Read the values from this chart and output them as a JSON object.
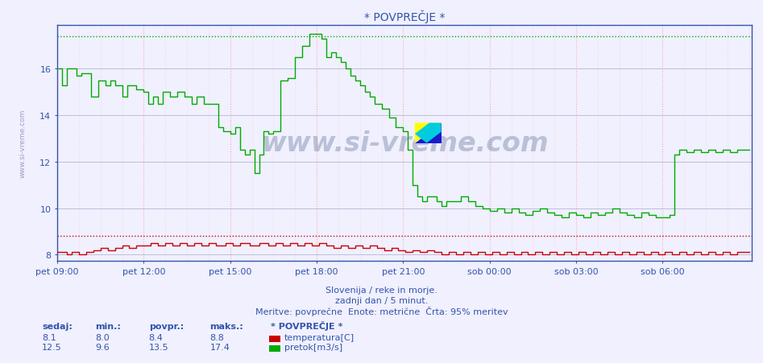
{
  "title": "* POVPREČJE *",
  "subtitle1": "Slovenija / reke in morje.",
  "subtitle2": "zadnji dan / 5 minut.",
  "subtitle3": "Meritve: povprečne  Enote: metrične  Črta: 95% meritev",
  "xlabel_ticks": [
    "pet 09:00",
    "pet 12:00",
    "pet 15:00",
    "pet 18:00",
    "pet 21:00",
    "sob 00:00",
    "sob 03:00",
    "sob 06:00"
  ],
  "ylabel_ticks": [
    8,
    10,
    12,
    14,
    16
  ],
  "ylim": [
    7.72,
    17.9
  ],
  "xlim": [
    0,
    289
  ],
  "tick_positions": [
    0,
    36,
    72,
    108,
    144,
    180,
    216,
    252
  ],
  "temp_color": "#cc0000",
  "flow_color": "#00aa00",
  "temp_95pct": 8.8,
  "flow_95pct": 17.4,
  "temp_min": 8.0,
  "temp_avg": 8.4,
  "temp_max": 8.8,
  "temp_cur": 8.1,
  "flow_min": 9.6,
  "flow_avg": 13.5,
  "flow_max": 17.4,
  "flow_cur": 12.5,
  "bg_color": "#f0f0ff",
  "grid_color_v": "#ffaaaa",
  "grid_color_h": "#aaaacc",
  "watermark": "www.si-vreme.com",
  "legend_title": "* POVPREČJE *",
  "label_temp": "temperatura[C]",
  "label_flow": "pretok[m3/s]",
  "label_sedaj": "sedaj:",
  "label_min": "min.:",
  "label_povpr": "povpr.:",
  "label_maks": "maks.:"
}
